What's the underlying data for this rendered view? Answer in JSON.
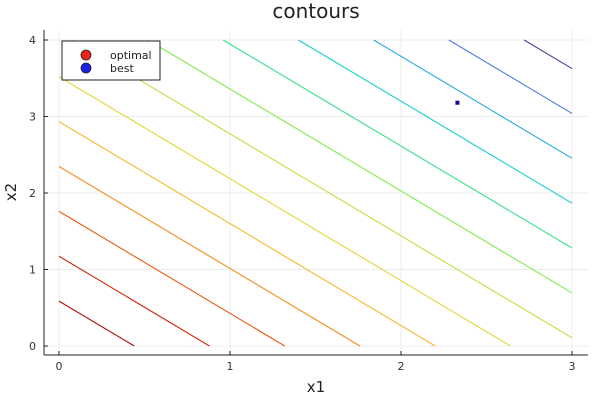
{
  "chart_data": {
    "type": "contour",
    "title": "contours",
    "xlabel": "x1",
    "ylabel": "x2",
    "xlim": [
      0,
      3
    ],
    "ylim": [
      0,
      4
    ],
    "xticks": [
      "0",
      "1",
      "2",
      "3"
    ],
    "yticks": [
      "0",
      "1",
      "2",
      "3",
      "4"
    ],
    "grid": true,
    "legend_position": "top-left",
    "legend": [
      {
        "name": "optimal",
        "color": "#e8241c"
      },
      {
        "name": "best",
        "color": "#1f1fe0"
      }
    ],
    "contour_function": "x1 + 0.75*x2",
    "contour_levels": [
      0.44,
      0.88,
      1.32,
      1.76,
      2.2,
      2.64,
      3.08,
      3.52,
      3.96,
      4.4,
      4.84,
      5.28,
      5.72
    ],
    "contour_colors": [
      "#b30d0d",
      "#d42a0f",
      "#ea5a14",
      "#f58c1a",
      "#f8b82a",
      "#e3d534",
      "#b8e33c",
      "#7fec4c",
      "#35e08a",
      "#16cfc8",
      "#26a8e0",
      "#4a7be0",
      "#4a3f9a"
    ],
    "markers": [
      {
        "name": "best",
        "x": 2.33,
        "y": 3.18,
        "color": "#0f0f90"
      }
    ]
  }
}
